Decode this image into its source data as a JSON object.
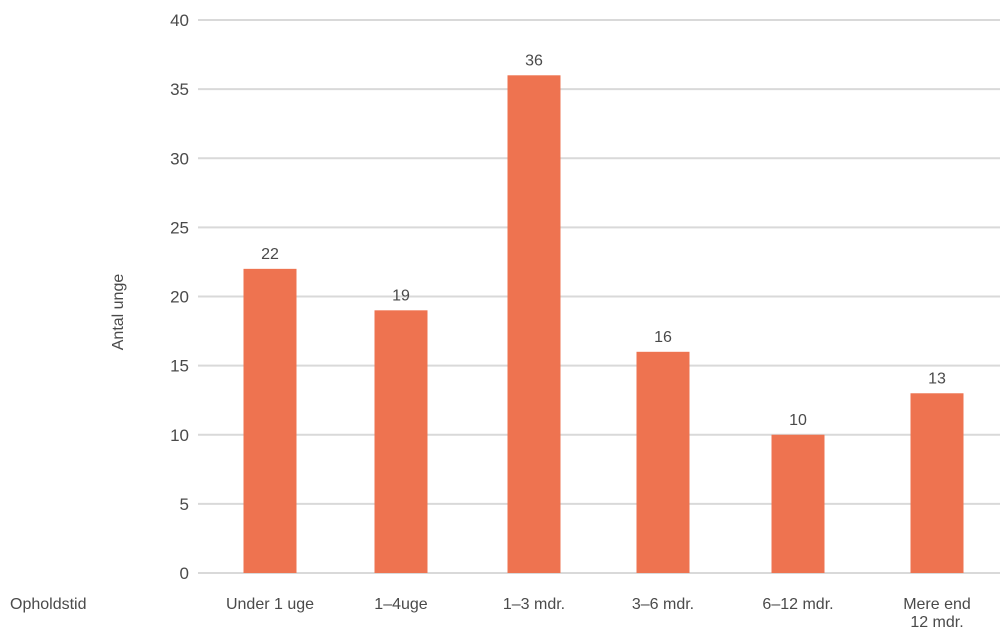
{
  "chart_data": {
    "type": "bar",
    "categories": [
      "Under 1 uge",
      "1–4uge",
      "1–3 mdr.",
      "3–6 mdr.",
      "6–12 mdr.",
      "Mere end 12 mdr."
    ],
    "values": [
      22,
      19,
      36,
      16,
      10,
      13
    ],
    "title": "",
    "xlabel": "Opholdstid",
    "ylabel": "Antal unge",
    "ylim": [
      0,
      40
    ],
    "yticks": [
      0,
      5,
      10,
      15,
      20,
      25,
      30,
      35,
      40
    ],
    "grid": true,
    "legend": "none",
    "bar_color": "#ee7350",
    "grid_color": "#d9d9d9",
    "text_color": "#4a4a4a"
  }
}
